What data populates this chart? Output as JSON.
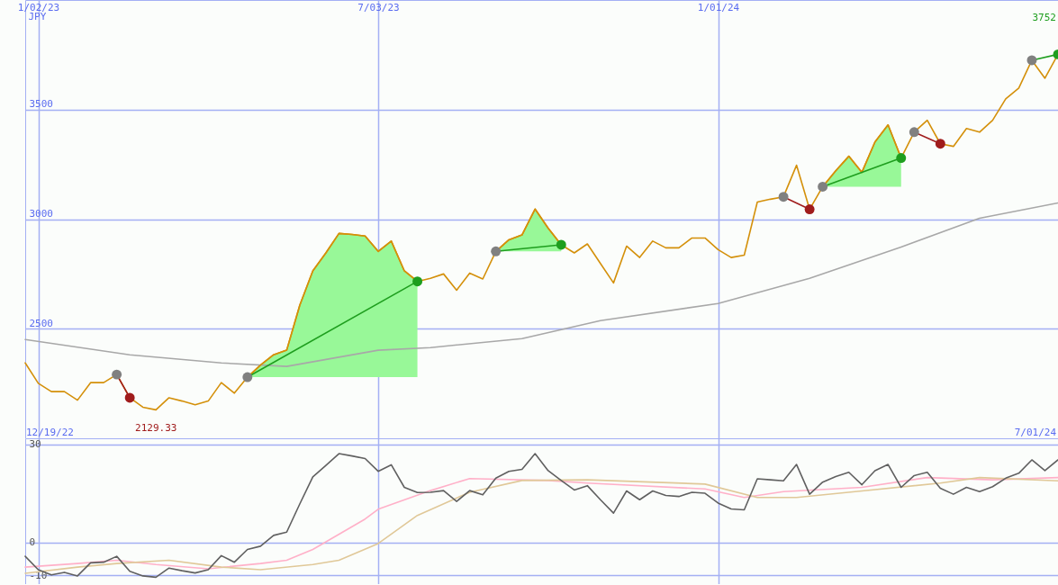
{
  "chart_data": [
    {
      "type": "line",
      "ylabel": "JPY",
      "x": [
        "2022-12-26",
        "2023-01-02",
        "2023-01-09",
        "2023-01-16",
        "2023-01-23",
        "2023-01-30",
        "2023-02-06",
        "2023-02-13",
        "2023-02-20",
        "2023-02-27",
        "2023-03-06",
        "2023-03-13",
        "2023-03-20",
        "2023-03-27",
        "2023-04-03",
        "2023-04-10",
        "2023-04-17",
        "2023-04-24",
        "2023-05-01",
        "2023-05-08",
        "2023-05-15",
        "2023-05-22",
        "2023-05-29",
        "2023-06-05",
        "2023-06-12",
        "2023-06-19",
        "2023-06-26",
        "2023-07-03",
        "2023-07-10",
        "2023-07-17",
        "2023-07-24",
        "2023-07-31",
        "2023-08-07",
        "2023-08-14",
        "2023-08-21",
        "2023-08-28",
        "2023-09-04",
        "2023-09-11",
        "2023-09-18",
        "2023-09-25",
        "2023-10-02",
        "2023-10-09",
        "2023-10-16",
        "2023-10-23",
        "2023-10-30",
        "2023-11-06",
        "2023-11-13",
        "2023-11-20",
        "2023-11-27",
        "2023-12-04",
        "2023-12-11",
        "2023-12-18",
        "2023-12-25",
        "2024-01-01",
        "2024-01-08",
        "2024-01-15",
        "2024-01-22",
        "2024-01-29",
        "2024-02-05",
        "2024-02-12",
        "2024-02-19",
        "2024-02-26",
        "2024-03-04",
        "2024-03-11",
        "2024-03-18",
        "2024-03-25",
        "2024-04-01",
        "2024-04-08",
        "2024-04-15",
        "2024-04-22",
        "2024-04-29",
        "2024-05-06",
        "2024-05-13",
        "2024-05-20",
        "2024-05-27",
        "2024-06-03",
        "2024-06-10",
        "2024-06-17",
        "2024-06-24",
        "2024-07-01"
      ],
      "series": [
        {
          "color": "#d4900a",
          "x": [
            "2023-04-24",
            "2023-05-01",
            "2023-05-08",
            "2023-05-15",
            "2023-05-22",
            "2023-05-29",
            "2023-06-05",
            "2023-06-12",
            "2023-06-19",
            "2023-06-26",
            "2023-07-03",
            "2023-07-10",
            "2023-07-17",
            "2023-07-24"
          ],
          "values": [
            2279,
            2334,
            2381,
            2402,
            2607,
            2764,
            2846,
            2935,
            2930,
            2923,
            2853,
            2900,
            2764,
            2716
          ],
          "lower": [
            2279,
            2279,
            2279,
            2279,
            2279,
            2279,
            2279,
            2279,
            2279,
            2279,
            2279,
            2279,
            2279,
            2279
          ],
          "upper": [
            2279,
            2334,
            2381,
            2402,
            2607,
            2764,
            2846,
            2935,
            2930,
            2923,
            2853,
            2900,
            2764,
            2716
          ]
        },
        {
          "color": "#d4900a",
          "x": [
            "2023-09-04",
            "2023-09-11",
            "2023-09-18",
            "2023-09-25",
            "2023-10-02",
            "2023-10-09"
          ],
          "values": [
            2853,
            2906,
            2928,
            3046,
            2959,
            2883
          ],
          "lower": [
            2853,
            2853,
            2853,
            2853,
            2853,
            2853
          ],
          "upper": [
            2853,
            2906,
            2928,
            3046,
            2959,
            2883
          ]
        },
        {
          "color": "#d4900a",
          "x": [
            "2024-02-26",
            "2024-03-04",
            "2024-03-11",
            "2024-03-18",
            "2024-03-25",
            "2024-04-01",
            "2024-04-08"
          ],
          "values": [
            3148,
            3221,
            3287,
            3214,
            3352,
            3430,
            3279
          ],
          "lower": [
            3148,
            3148,
            3148,
            3148,
            3148,
            3148,
            3148
          ],
          "upper": [
            3148,
            3221,
            3287,
            3214,
            3352,
            3430,
            3279
          ]
        },
        {
          "color": "#a8a8a8",
          "x": [
            "2022-12-26",
            "2023-02-20",
            "2023-04-10",
            "2023-05-15",
            "2023-07-03",
            "2023-07-31",
            "2023-09-18",
            "2023-10-30",
            "2024-01-01",
            "2024-02-19",
            "2024-04-08",
            "2024-05-20",
            "2024-07-01"
          ],
          "values": [
            2451,
            2381,
            2344,
            2328,
            2402,
            2414,
            2455,
            2537,
            2615,
            2730,
            2873,
            3004,
            3074
          ]
        },
        {
          "color": "#d4900a",
          "values": [
            2344,
            2251,
            2213,
            2213,
            2174,
            2254,
            2254,
            2291,
            2185,
            2142,
            2130,
            2185,
            2170,
            2153,
            2170,
            2254,
            2206,
            2279,
            2334,
            2381,
            2402,
            2607,
            2764,
            2846,
            2935,
            2930,
            2923,
            2853,
            2900,
            2764,
            2716,
            2730,
            2750,
            2676,
            2754,
            2727,
            2853,
            2906,
            2928,
            3046,
            2959,
            2883,
            2846,
            2887,
            2798,
            2709,
            2877,
            2825,
            2900,
            2869,
            2869,
            2914,
            2914,
            2861,
            2825,
            2836,
            3078,
            3091,
            3102,
            3246,
            3045,
            3148,
            3221,
            3287,
            3214,
            3352,
            3430,
            3279,
            3397,
            3451,
            3344,
            3332,
            3414,
            3397,
            3451,
            3549,
            3598,
            3725,
            3643,
            3752
          ]
        },
        {
          "color": "#a01c1c",
          "x": [
            "2023-02-13",
            "2023-02-20"
          ],
          "values": [
            2291,
            2185
          ]
        },
        {
          "color": "#1e9e1e",
          "x": [
            "2023-04-24",
            "2023-07-24"
          ],
          "values": [
            2279,
            2716
          ]
        },
        {
          "color": "#1e9e1e",
          "x": [
            "2023-09-04",
            "2023-10-09"
          ],
          "values": [
            2853,
            2883
          ]
        },
        {
          "color": "#a01c1c",
          "x": [
            "2024-02-05",
            "2024-02-19"
          ],
          "values": [
            3102,
            3045
          ]
        },
        {
          "color": "#1e9e1e",
          "x": [
            "2024-02-26",
            "2024-04-08"
          ],
          "values": [
            3148,
            3279
          ]
        },
        {
          "color": "#a01c1c",
          "x": [
            "2024-04-15",
            "2024-04-29"
          ],
          "values": [
            3397,
            3344
          ]
        },
        {
          "color": "#1e9e1e",
          "x": [
            "2024-06-17",
            "2024-07-01"
          ],
          "values": [
            3725,
            3752
          ]
        },
        {
          "type": "scatter",
          "marker": "circle",
          "color": "#808080",
          "x": [
            "2023-02-13",
            "2023-04-24",
            "2023-09-04",
            "2024-02-05",
            "2024-02-26",
            "2024-04-15",
            "2024-06-17"
          ],
          "values": [
            2291,
            2279,
            2853,
            3102,
            3148,
            3397,
            3725
          ]
        },
        {
          "type": "scatter",
          "marker": "circle",
          "color": "#a01c1c",
          "x": [
            "2023-02-20",
            "2024-02-19",
            "2024-04-29"
          ],
          "values": [
            2185,
            3045,
            3344
          ]
        },
        {
          "type": "scatter",
          "marker": "circle",
          "color": "#1e9e1e",
          "x": [
            "2023-07-24",
            "2023-10-09",
            "2024-04-08",
            "2024-07-01"
          ],
          "values": [
            2716,
            2883,
            3279,
            3752
          ]
        }
      ],
      "xlim": [
        "2022-12-26",
        "2024-07-01"
      ],
      "xticks": [
        {
          "value": "2023-01-02",
          "label": "1/02/23"
        },
        {
          "value": "2023-07-03",
          "label": "7/03/23"
        },
        {
          "value": "2024-01-01",
          "label": "1/01/24"
        }
      ],
      "ylim": [
        2000,
        4000
      ],
      "yticks": [
        2500,
        3000,
        3500
      ],
      "grid": true,
      "annotations": [
        "12/19/22",
        "7/01/24",
        "3752",
        {
          "text": "2129.33",
          "x": "2023-03-06",
          "y": 2129.33
        }
      ]
    },
    {
      "type": "line",
      "x": [
        "2022-12-26",
        "2023-01-02",
        "2023-01-09",
        "2023-01-16",
        "2023-01-23",
        "2023-01-30",
        "2023-02-06",
        "2023-02-13",
        "2023-02-20",
        "2023-02-27",
        "2023-03-06",
        "2023-03-13",
        "2023-03-20",
        "2023-03-27",
        "2023-04-03",
        "2023-04-10",
        "2023-04-17",
        "2023-04-24",
        "2023-05-01",
        "2023-05-08",
        "2023-05-15",
        "2023-05-22",
        "2023-05-29",
        "2023-06-05",
        "2023-06-12",
        "2023-06-19",
        "2023-06-26",
        "2023-07-03",
        "2023-07-10",
        "2023-07-17",
        "2023-07-24",
        "2023-07-31",
        "2023-08-07",
        "2023-08-14",
        "2023-08-21",
        "2023-08-28",
        "2023-09-04",
        "2023-09-11",
        "2023-09-18",
        "2023-09-25",
        "2023-10-02",
        "2023-10-09",
        "2023-10-16",
        "2023-10-23",
        "2023-10-30",
        "2023-11-06",
        "2023-11-13",
        "2023-11-20",
        "2023-11-27",
        "2023-12-04",
        "2023-12-11",
        "2023-12-18",
        "2023-12-25",
        "2024-01-01",
        "2024-01-08",
        "2024-01-15",
        "2024-01-22",
        "2024-01-29",
        "2024-02-05",
        "2024-02-12",
        "2024-02-19",
        "2024-02-26",
        "2024-03-04",
        "2024-03-11",
        "2024-03-18",
        "2024-03-25",
        "2024-04-01",
        "2024-04-08",
        "2024-04-15",
        "2024-04-22",
        "2024-04-29",
        "2024-05-06",
        "2024-05-13",
        "2024-05-20",
        "2024-05-27",
        "2024-06-03",
        "2024-06-10",
        "2024-06-17",
        "2024-06-24",
        "2024-07-01"
      ],
      "series": [
        {
          "color": "#ffb0c8",
          "x": [
            "2022-12-26",
            "2023-01-23",
            "2023-02-13",
            "2023-03-06",
            "2023-04-03",
            "2023-05-01",
            "2023-05-15",
            "2023-05-29",
            "2023-06-26",
            "2023-07-03",
            "2023-07-31",
            "2023-08-21",
            "2023-10-02",
            "2023-10-23",
            "2023-12-25",
            "2024-01-15",
            "2024-02-05",
            "2024-03-18",
            "2024-04-22",
            "2024-05-27",
            "2024-07-01"
          ],
          "values": [
            -7.5,
            -6.4,
            -5.4,
            -6.7,
            -8.0,
            -6.4,
            -5.4,
            -2.1,
            7.2,
            10.2,
            15.9,
            19.6,
            19.0,
            18.2,
            16.4,
            13.8,
            15.6,
            16.9,
            19.9,
            19.2,
            19.9
          ]
        },
        {
          "color": "#e0c898",
          "x": [
            "2022-12-26",
            "2023-01-23",
            "2023-02-13",
            "2023-03-13",
            "2023-04-10",
            "2023-05-01",
            "2023-05-29",
            "2023-06-12",
            "2023-07-03",
            "2023-07-24",
            "2023-08-21",
            "2023-09-18",
            "2023-10-23",
            "2023-12-25",
            "2024-01-22",
            "2024-02-12",
            "2024-03-18",
            "2024-04-29",
            "2024-05-20",
            "2024-07-01"
          ],
          "values": [
            -9.4,
            -7.5,
            -6.4,
            -5.4,
            -7.5,
            -8.3,
            -6.7,
            -5.4,
            -0.3,
            8.3,
            15.4,
            19.0,
            19.2,
            17.9,
            13.8,
            13.8,
            15.8,
            18.2,
            19.9,
            18.9
          ]
        },
        {
          "color": "#606060",
          "values": [
            -4.2,
            -8.3,
            -9.9,
            -9.1,
            -10.2,
            -6.2,
            -6.0,
            -4.2,
            -8.8,
            -10.2,
            -10.6,
            -7.8,
            -8.6,
            -9.3,
            -8.3,
            -4.0,
            -6.0,
            -2.1,
            -1.1,
            2.2,
            3.2,
            11.8,
            20.1,
            23.6,
            27.2,
            26.5,
            25.7,
            21.8,
            23.8,
            16.9,
            15.3,
            15.4,
            15.9,
            12.6,
            15.9,
            14.6,
            19.7,
            21.8,
            22.4,
            27.2,
            22.0,
            19.0,
            16.1,
            17.4,
            13.1,
            9.0,
            15.8,
            13.1,
            15.8,
            14.4,
            14.1,
            15.4,
            15.1,
            12.1,
            10.3,
            10.0,
            19.5,
            19.2,
            18.9,
            23.9,
            14.8,
            18.5,
            20.2,
            21.5,
            17.7,
            22.0,
            23.9,
            16.9,
            20.5,
            21.5,
            16.6,
            14.8,
            16.9,
            15.6,
            17.1,
            19.7,
            21.2,
            25.3,
            22.0,
            25.3
          ]
        }
      ],
      "xlim": [
        "2022-12-26",
        "2024-07-01"
      ],
      "xticks": [
        {
          "value": "2023-01-02",
          "label": null
        },
        {
          "value": "2023-07-03",
          "label": null
        },
        {
          "value": "2024-01-01",
          "label": null
        }
      ],
      "ylim": [
        -12.7,
        31.9
      ],
      "yticks": [
        -10,
        0,
        30
      ],
      "grid": true,
      "tick_labels": "y"
    }
  ]
}
